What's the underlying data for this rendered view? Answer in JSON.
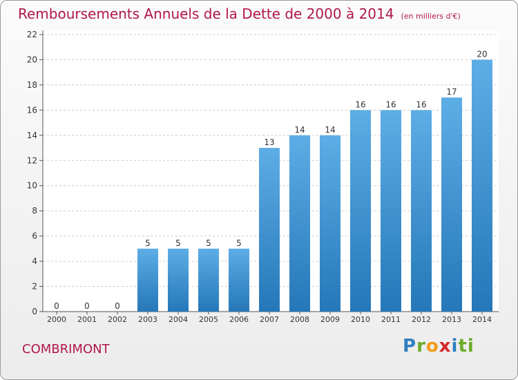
{
  "header": {
    "title": "Remboursements Annuels de la Dette de 2000 à 2014",
    "subtitle": "(en milliers d'€)"
  },
  "footer": {
    "commune": "COMBRIMONT",
    "logo_letters": [
      "P",
      "r",
      "o",
      "x",
      "i",
      "ti"
    ]
  },
  "colors": {
    "bar_top": "#5dade6",
    "bar_bottom": "#2577b8",
    "title": "#b0164e",
    "grid": "#cccccc"
  },
  "chart_data": {
    "type": "bar",
    "title": "Remboursements Annuels de la Dette de 2000 à 2014",
    "subtitle": "(en milliers d'€)",
    "categories": [
      "2000",
      "2001",
      "2002",
      "2003",
      "2004",
      "2005",
      "2006",
      "2007",
      "2008",
      "2009",
      "2010",
      "2011",
      "2012",
      "2013",
      "2014"
    ],
    "values": [
      0,
      0,
      0,
      5,
      5,
      5,
      5,
      13,
      14,
      14,
      16,
      16,
      16,
      17,
      20
    ],
    "y_ticks": [
      0,
      2,
      4,
      6,
      8,
      10,
      12,
      14,
      16,
      18,
      20,
      22
    ],
    "ylim": [
      0,
      22
    ],
    "grid": true,
    "grid_style": "dashed horizontal",
    "data_labels": true
  }
}
